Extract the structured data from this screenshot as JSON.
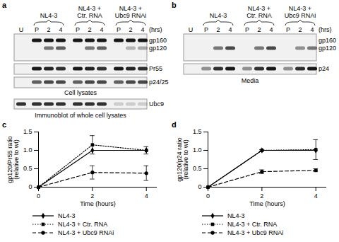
{
  "blots": {
    "a": {
      "letter": "a",
      "groups": [
        "NL4-3",
        "NL4-3 +\nCtr. RNA",
        "NL4-3 +\nUbc9 RNAi"
      ],
      "lanes": [
        "U",
        "P",
        "2",
        "4",
        "P",
        "2",
        "4",
        "P",
        "2",
        "4"
      ],
      "unit": "(hrs)",
      "bands": [
        "gp160",
        "gp120",
        "Pr55",
        "p24/25",
        "Ubc9"
      ],
      "captions": [
        "Cell lysates",
        "Immunoblot of whole cell lysates"
      ]
    },
    "b": {
      "letter": "b",
      "groups": [
        "NL4-3",
        "NL4-3 +\nCtr. RNA",
        "NL4-3 +\nUbc9 RNAi"
      ],
      "lanes": [
        "U",
        "P",
        "2",
        "4",
        "P",
        "2",
        "4",
        "P",
        "2",
        "4"
      ],
      "unit": "(hrs)",
      "bands": [
        "gp160",
        "gp120",
        "p24"
      ],
      "captions": [
        "Media"
      ]
    }
  },
  "chart_data": [
    {
      "type": "line",
      "letter": "c",
      "ylabel": "gp120/Pr55 ratio\n(relative to wt)",
      "xlabel": "Time (hours)",
      "x": [
        0,
        2,
        4
      ],
      "xlim": [
        0,
        4.4
      ],
      "xticks": [
        0,
        2,
        4
      ],
      "ylim": [
        0,
        1.5
      ],
      "yticks": [
        0,
        0.5,
        {
          "value": 1,
          "label": "1.0"
        },
        1.5
      ],
      "grid": false,
      "series": [
        {
          "name": "NL4-3",
          "color": "#000000",
          "marker": "diamond",
          "line_style": "solid",
          "values": [
            0,
            1,
            1
          ]
        },
        {
          "name": "NL4-3 + Ctr. RNA",
          "color": "#000000",
          "marker": "square",
          "line_style": "dotted",
          "values": [
            0,
            1.15,
            1.0
          ],
          "errors": [
            0,
            0.25,
            0.1
          ]
        },
        {
          "name": "NL4-3 + Ubc9 RNAi",
          "color": "#000000",
          "marker": "circle",
          "line_style": "dashed",
          "values": [
            0,
            0.4,
            0.38
          ],
          "errors": [
            0,
            0.18,
            0.2
          ]
        }
      ]
    },
    {
      "type": "line",
      "letter": "d",
      "ylabel": "gp120/p24 ratio\n(relative to wt)",
      "xlabel": "Time (hours)",
      "x": [
        0,
        2,
        4
      ],
      "xlim": [
        0,
        4.4
      ],
      "xticks": [
        0,
        2,
        4
      ],
      "ylim": [
        0,
        1.5
      ],
      "yticks": [
        0,
        0.5,
        {
          "value": 1,
          "label": "1.0"
        },
        1.5
      ],
      "grid": false,
      "series": [
        {
          "name": "NL4-3",
          "color": "#000000",
          "marker": "diamond",
          "line_style": "solid",
          "values": [
            0,
            1,
            1
          ]
        },
        {
          "name": "NL4-3 + Ctr. RNA",
          "color": "#000000",
          "marker": "square",
          "line_style": "dotted",
          "values": [
            0,
            1.0,
            1.02
          ],
          "errors": [
            0,
            0.02,
            0.27
          ]
        },
        {
          "name": "NL4-3 + Ubc9 RNAi",
          "color": "#000000",
          "marker": "circle",
          "line_style": "dashed",
          "values": [
            0,
            0.42,
            0.46
          ],
          "errors": [
            0,
            0.05,
            0.04
          ]
        }
      ]
    }
  ]
}
